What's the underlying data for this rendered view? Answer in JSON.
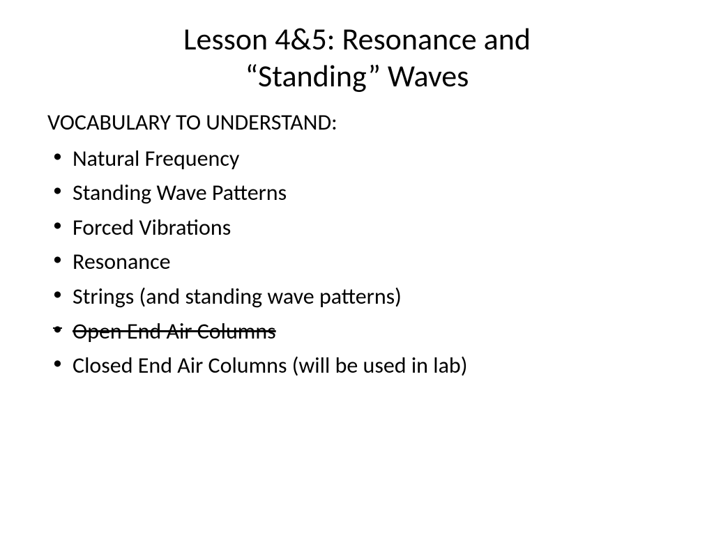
{
  "slide": {
    "title_line1": "Lesson 4&5:  Resonance and",
    "title_line2": "“Standing” Waves",
    "subheading": "VOCABULARY TO UNDERSTAND:",
    "bullets": [
      {
        "text": "Natural Frequency",
        "strike": false
      },
      {
        "text": "Standing Wave Patterns",
        "strike": false
      },
      {
        "text": "Forced Vibrations",
        "strike": false
      },
      {
        "text": "Resonance",
        "strike": false
      },
      {
        "text": "Strings (and standing wave patterns)",
        "strike": false
      },
      {
        "text": "Open End Air Columns",
        "strike": true
      },
      {
        "text": "Closed End Air Columns (will be used in lab)",
        "strike": false
      }
    ],
    "colors": {
      "background": "#ffffff",
      "text": "#000000"
    },
    "fonts": {
      "title_size": 44,
      "body_size": 32,
      "family": "Calibri"
    }
  }
}
